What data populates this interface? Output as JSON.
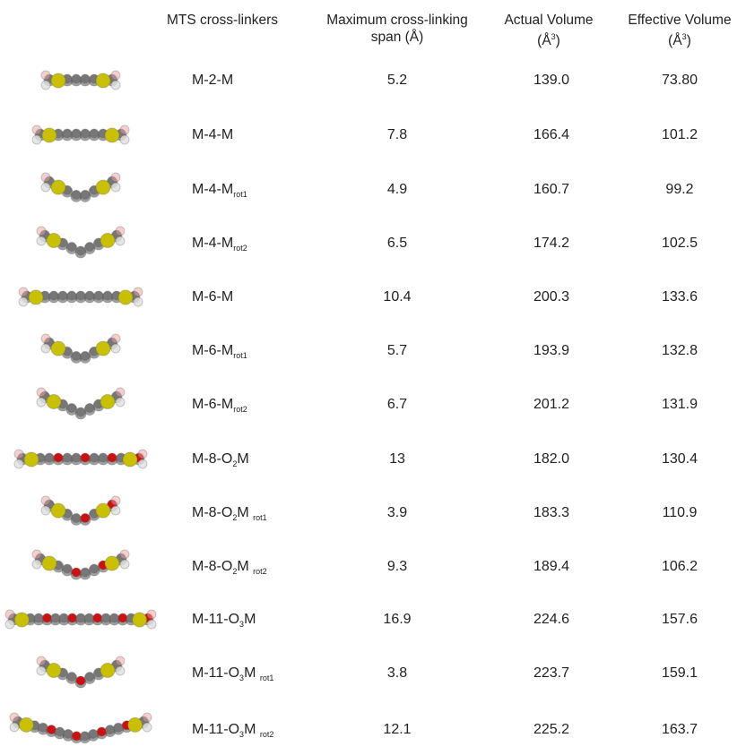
{
  "table": {
    "header": [
      [
        [
          {
            "text": "MTS cross-linkers"
          }
        ]
      ],
      [
        [
          {
            "text": "Maximum cross-linking"
          }
        ],
        [
          {
            "text": "span (Å)"
          }
        ]
      ],
      [
        [
          {
            "text": "Actual Volume"
          }
        ],
        [
          {
            "text": "(Å"
          },
          {
            "sup": "3"
          },
          {
            "text": ")"
          }
        ]
      ],
      [
        [
          {
            "text": "Effective Volume"
          }
        ],
        [
          {
            "text": "(Å"
          },
          {
            "sup": "3"
          },
          {
            "text": ")"
          }
        ]
      ]
    ],
    "rows": [
      {
        "name": [
          {
            "text": "M-2-M"
          }
        ],
        "span": "5.2",
        "actual": "139.0",
        "effective": "73.80"
      },
      {
        "name": [
          {
            "text": "M-4-M"
          }
        ],
        "span": "7.8",
        "actual": "166.4",
        "effective": "101.2"
      },
      {
        "name": [
          {
            "text": "M-4-M"
          },
          {
            "sub": "rot1"
          }
        ],
        "span": "4.9",
        "actual": "160.7",
        "effective": "99.2"
      },
      {
        "name": [
          {
            "text": "M-4-M"
          },
          {
            "sub": "rot2"
          }
        ],
        "span": "6.5",
        "actual": "174.2",
        "effective": "102.5"
      },
      {
        "name": [
          {
            "text": "M-6-M"
          }
        ],
        "span": "10.4",
        "actual": "200.3",
        "effective": "133.6"
      },
      {
        "name": [
          {
            "text": "M-6-M"
          },
          {
            "sub": "rot1"
          }
        ],
        "span": "5.7",
        "actual": "193.9",
        "effective": "132.8"
      },
      {
        "name": [
          {
            "text": "M-6-M"
          },
          {
            "sub": "rot2"
          }
        ],
        "span": "6.7",
        "actual": "201.2",
        "effective": "131.9"
      },
      {
        "name": [
          {
            "text": "M-8-O"
          },
          {
            "sub": "2"
          },
          {
            "text": "M"
          }
        ],
        "span": "13",
        "actual": "182.0",
        "effective": "130.4"
      },
      {
        "name": [
          {
            "text": "M-8-O"
          },
          {
            "sub": "2"
          },
          {
            "text": "M "
          },
          {
            "sub": "rot1"
          }
        ],
        "span": "3.9",
        "actual": "183.3",
        "effective": "110.9"
      },
      {
        "name": [
          {
            "text": "M-8-O"
          },
          {
            "sub": "2"
          },
          {
            "text": "M "
          },
          {
            "sub": "rot2"
          }
        ],
        "span": "9.3",
        "actual": "189.4",
        "effective": "106.2"
      },
      {
        "name": [
          {
            "text": "M-11-O"
          },
          {
            "sub": "3"
          },
          {
            "text": "M"
          }
        ],
        "span": "16.9",
        "actual": "224.6",
        "effective": "157.6"
      },
      {
        "name": [
          {
            "text": "M-11-O"
          },
          {
            "sub": "3"
          },
          {
            "text": "M "
          },
          {
            "sub": "rot1"
          }
        ],
        "span": "3.8",
        "actual": "223.7",
        "effective": "159.1"
      },
      {
        "name": [
          {
            "text": "M-11-O"
          },
          {
            "sub": "3"
          },
          {
            "text": "M "
          },
          {
            "sub": "rot2"
          }
        ],
        "span": "12.1",
        "actual": "225.2",
        "effective": "163.7"
      }
    ]
  }
}
